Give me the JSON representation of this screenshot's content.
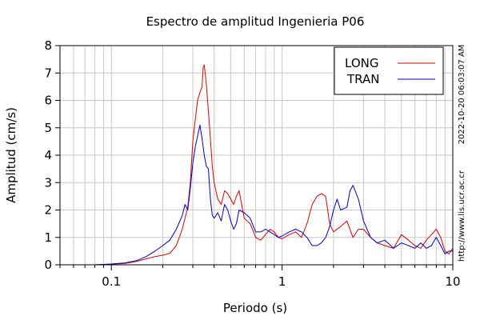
{
  "chart_data": {
    "type": "line",
    "title": "Espectro de amplitud Ingenieria P06",
    "xlabel": "Periodo (s)",
    "ylabel": "Amplitud (cm/s)",
    "xscale": "log",
    "xlim": [
      0.05,
      10
    ],
    "ylim": [
      0,
      8
    ],
    "grid": true,
    "legend_position": "top-right",
    "x_tick_labels": [
      "0.1",
      "1",
      "10"
    ],
    "y_tick_labels": [
      "0",
      "1",
      "2",
      "3",
      "4",
      "5",
      "6",
      "7",
      "8"
    ],
    "side_text": "2022-10-20 06:03:07 AM",
    "side_url": "http://www.lis.ucr.ac.cr",
    "series": [
      {
        "name": "LONG",
        "color": "#dd0000",
        "points": [
          [
            0.05,
            0.0
          ],
          [
            0.08,
            0.0
          ],
          [
            0.1,
            0.02
          ],
          [
            0.12,
            0.05
          ],
          [
            0.14,
            0.12
          ],
          [
            0.16,
            0.22
          ],
          [
            0.18,
            0.3
          ],
          [
            0.2,
            0.35
          ],
          [
            0.22,
            0.42
          ],
          [
            0.24,
            0.7
          ],
          [
            0.26,
            1.3
          ],
          [
            0.28,
            2.1
          ],
          [
            0.29,
            3.0
          ],
          [
            0.3,
            4.5
          ],
          [
            0.31,
            5.3
          ],
          [
            0.32,
            6.0
          ],
          [
            0.33,
            6.3
          ],
          [
            0.34,
            6.5
          ],
          [
            0.345,
            7.2
          ],
          [
            0.35,
            7.3
          ],
          [
            0.36,
            6.6
          ],
          [
            0.37,
            5.6
          ],
          [
            0.38,
            4.6
          ],
          [
            0.39,
            3.6
          ],
          [
            0.4,
            3.0
          ],
          [
            0.42,
            2.4
          ],
          [
            0.44,
            2.2
          ],
          [
            0.46,
            2.7
          ],
          [
            0.48,
            2.6
          ],
          [
            0.5,
            2.4
          ],
          [
            0.52,
            2.2
          ],
          [
            0.54,
            2.5
          ],
          [
            0.56,
            2.7
          ],
          [
            0.58,
            2.2
          ],
          [
            0.6,
            1.7
          ],
          [
            0.65,
            1.5
          ],
          [
            0.7,
            1.0
          ],
          [
            0.75,
            0.9
          ],
          [
            0.8,
            1.1
          ],
          [
            0.85,
            1.3
          ],
          [
            0.9,
            1.2
          ],
          [
            0.95,
            1.0
          ],
          [
            1.0,
            0.95
          ],
          [
            1.1,
            1.1
          ],
          [
            1.2,
            1.2
          ],
          [
            1.3,
            1.0
          ],
          [
            1.4,
            1.5
          ],
          [
            1.5,
            2.2
          ],
          [
            1.6,
            2.5
          ],
          [
            1.7,
            2.6
          ],
          [
            1.8,
            2.5
          ],
          [
            1.9,
            1.5
          ],
          [
            2.0,
            1.2
          ],
          [
            2.2,
            1.4
          ],
          [
            2.4,
            1.6
          ],
          [
            2.6,
            1.0
          ],
          [
            2.8,
            1.3
          ],
          [
            3.0,
            1.3
          ],
          [
            3.3,
            1.0
          ],
          [
            3.6,
            0.8
          ],
          [
            4.0,
            0.7
          ],
          [
            4.5,
            0.6
          ],
          [
            5.0,
            1.1
          ],
          [
            5.5,
            0.9
          ],
          [
            6.0,
            0.7
          ],
          [
            6.5,
            0.6
          ],
          [
            7.0,
            0.9
          ],
          [
            7.5,
            1.1
          ],
          [
            8.0,
            1.3
          ],
          [
            8.5,
            1.0
          ],
          [
            9.0,
            0.5
          ],
          [
            9.5,
            0.4
          ],
          [
            10.0,
            0.6
          ]
        ]
      },
      {
        "name": "TRAN",
        "color": "#0000cc",
        "points": [
          [
            0.05,
            0.0
          ],
          [
            0.08,
            0.0
          ],
          [
            0.1,
            0.03
          ],
          [
            0.12,
            0.07
          ],
          [
            0.14,
            0.15
          ],
          [
            0.16,
            0.3
          ],
          [
            0.18,
            0.5
          ],
          [
            0.2,
            0.7
          ],
          [
            0.22,
            0.9
          ],
          [
            0.24,
            1.3
          ],
          [
            0.26,
            1.8
          ],
          [
            0.27,
            2.2
          ],
          [
            0.28,
            2.0
          ],
          [
            0.29,
            2.8
          ],
          [
            0.3,
            3.7
          ],
          [
            0.31,
            4.3
          ],
          [
            0.32,
            4.7
          ],
          [
            0.33,
            5.1
          ],
          [
            0.34,
            4.6
          ],
          [
            0.35,
            4.0
          ],
          [
            0.36,
            3.6
          ],
          [
            0.37,
            3.5
          ],
          [
            0.38,
            2.4
          ],
          [
            0.39,
            1.8
          ],
          [
            0.4,
            1.7
          ],
          [
            0.42,
            1.9
          ],
          [
            0.44,
            1.6
          ],
          [
            0.46,
            2.2
          ],
          [
            0.48,
            2.0
          ],
          [
            0.5,
            1.6
          ],
          [
            0.52,
            1.3
          ],
          [
            0.54,
            1.5
          ],
          [
            0.56,
            2.0
          ],
          [
            0.6,
            1.9
          ],
          [
            0.65,
            1.7
          ],
          [
            0.7,
            1.2
          ],
          [
            0.75,
            1.2
          ],
          [
            0.8,
            1.3
          ],
          [
            0.85,
            1.2
          ],
          [
            0.9,
            1.1
          ],
          [
            0.95,
            1.0
          ],
          [
            1.0,
            1.05
          ],
          [
            1.1,
            1.2
          ],
          [
            1.2,
            1.3
          ],
          [
            1.3,
            1.2
          ],
          [
            1.4,
            1.0
          ],
          [
            1.5,
            0.7
          ],
          [
            1.6,
            0.7
          ],
          [
            1.7,
            0.8
          ],
          [
            1.8,
            1.0
          ],
          [
            1.9,
            1.4
          ],
          [
            2.0,
            2.0
          ],
          [
            2.1,
            2.4
          ],
          [
            2.2,
            2.0
          ],
          [
            2.4,
            2.1
          ],
          [
            2.5,
            2.7
          ],
          [
            2.6,
            2.9
          ],
          [
            2.8,
            2.4
          ],
          [
            3.0,
            1.6
          ],
          [
            3.3,
            1.0
          ],
          [
            3.6,
            0.8
          ],
          [
            4.0,
            0.9
          ],
          [
            4.5,
            0.6
          ],
          [
            5.0,
            0.8
          ],
          [
            5.5,
            0.7
          ],
          [
            6.0,
            0.6
          ],
          [
            6.5,
            0.8
          ],
          [
            7.0,
            0.6
          ],
          [
            7.5,
            0.7
          ],
          [
            8.0,
            1.0
          ],
          [
            8.5,
            0.7
          ],
          [
            9.0,
            0.4
          ],
          [
            9.5,
            0.5
          ],
          [
            10.0,
            0.5
          ]
        ]
      }
    ]
  }
}
